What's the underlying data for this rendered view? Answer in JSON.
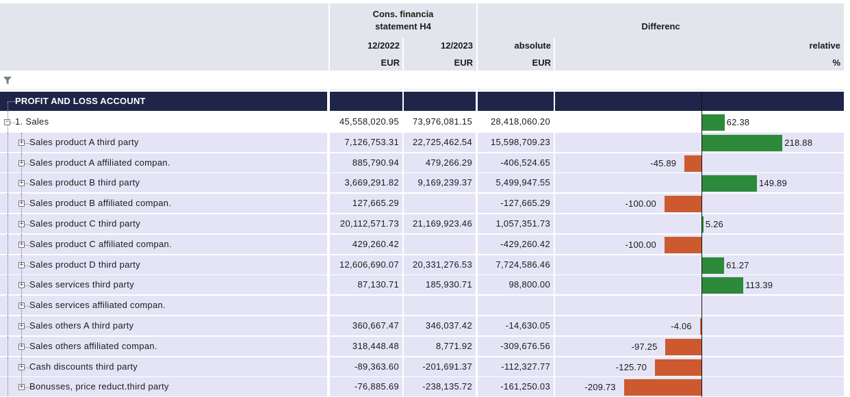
{
  "header": {
    "group1_line1": "Cons. financia",
    "group1_line2": "statement H4",
    "group2": "Differenc",
    "col1_period": "12/2022",
    "col1_unit": "EUR",
    "col2_period": "12/2023",
    "col2_unit": "EUR",
    "col3_label": "absolute",
    "col3_unit": "EUR",
    "col4_label": "relative",
    "col4_unit": "%"
  },
  "filter": {
    "icon": "filter-icon"
  },
  "section": {
    "label": "PROFIT AND LOSS ACCOUNT"
  },
  "colors": {
    "header_bg": "#e3e5ec",
    "section_bg": "#1f2548",
    "row_alt": "#e4e4f6",
    "positive": "#2c8a3a",
    "negative": "#cc5a2e"
  },
  "rows": [
    {
      "label": "1. Sales",
      "v2022": "45,558,020.95",
      "v2023": "73,976,081.15",
      "abs": "28,418,060.20",
      "rel": "62.38",
      "rel_value": 62.38
    },
    {
      "label": "Sales product A third party",
      "v2022": "7,126,753.31",
      "v2023": "22,725,462.54",
      "abs": "15,598,709.23",
      "rel": "218.88",
      "rel_value": 218.88
    },
    {
      "label": "Sales product A affiliated compan.",
      "v2022": "885,790.94",
      "v2023": "479,266.29",
      "abs": "-406,524.65",
      "rel": "-45.89",
      "rel_value": -45.89
    },
    {
      "label": "Sales product B third party",
      "v2022": "3,669,291.82",
      "v2023": "9,169,239.37",
      "abs": "5,499,947.55",
      "rel": "149.89",
      "rel_value": 149.89
    },
    {
      "label": "Sales product B affiliated compan.",
      "v2022": "127,665.29",
      "v2023": "",
      "abs": "-127,665.29",
      "rel": "-100.00",
      "rel_value": -100.0
    },
    {
      "label": "Sales product C third party",
      "v2022": "20,112,571.73",
      "v2023": "21,169,923.46",
      "abs": "1,057,351.73",
      "rel": "5.26",
      "rel_value": 5.26
    },
    {
      "label": "Sales product C affiliated compan.",
      "v2022": "429,260.42",
      "v2023": "",
      "abs": "-429,260.42",
      "rel": "-100.00",
      "rel_value": -100.0
    },
    {
      "label": "Sales product D third party",
      "v2022": "12,606,690.07",
      "v2023": "20,331,276.53",
      "abs": "7,724,586.46",
      "rel": "61.27",
      "rel_value": 61.27
    },
    {
      "label": "Sales services third party",
      "v2022": "87,130.71",
      "v2023": "185,930.71",
      "abs": "98,800.00",
      "rel": "113.39",
      "rel_value": 113.39
    },
    {
      "label": "Sales services affiliated compan.",
      "v2022": "",
      "v2023": "",
      "abs": "",
      "rel": "",
      "rel_value": null
    },
    {
      "label": "Sales others A third party",
      "v2022": "360,667.47",
      "v2023": "346,037.42",
      "abs": "-14,630.05",
      "rel": "-4.06",
      "rel_value": -4.06
    },
    {
      "label": "Sales others affiliated compan.",
      "v2022": "318,448.48",
      "v2023": "8,771.92",
      "abs": "-309,676.56",
      "rel": "-97.25",
      "rel_value": -97.25
    },
    {
      "label": "Cash discounts third party",
      "v2022": "-89,363.60",
      "v2023": "-201,691.37",
      "abs": "-112,327.77",
      "rel": "-125.70",
      "rel_value": -125.7
    },
    {
      "label": "Bonusses, price reduct.third party",
      "v2022": "-76,885.69",
      "v2023": "-238,135.72",
      "abs": "-161,250.03",
      "rel": "-209.73",
      "rel_value": -209.73
    }
  ]
}
